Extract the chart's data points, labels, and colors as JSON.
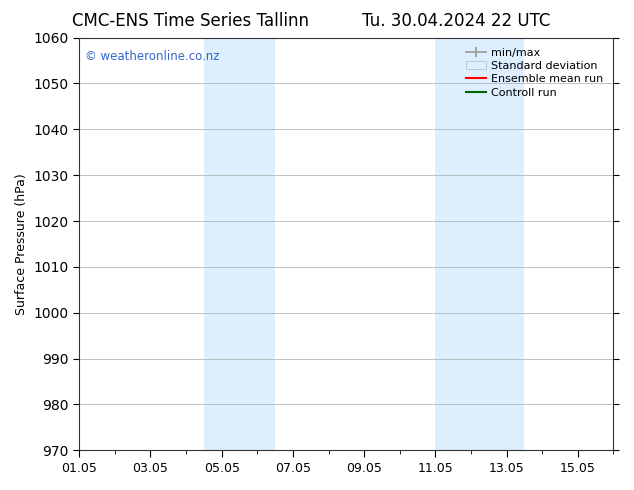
{
  "title_left": "CMC-ENS Time Series Tallinn",
  "title_right": "Tu. 30.04.2024 22 UTC",
  "ylabel": "Surface Pressure (hPa)",
  "ylim": [
    970,
    1060
  ],
  "yticks": [
    970,
    980,
    990,
    1000,
    1010,
    1020,
    1030,
    1040,
    1050,
    1060
  ],
  "xlim": [
    0,
    15
  ],
  "xtick_labels": [
    "01.05",
    "03.05",
    "05.05",
    "07.05",
    "09.05",
    "11.05",
    "13.05",
    "15.05"
  ],
  "xtick_positions": [
    0,
    2,
    4,
    6,
    8,
    10,
    12,
    14
  ],
  "xtick_minor_positions": [
    0,
    1,
    2,
    3,
    4,
    5,
    6,
    7,
    8,
    9,
    10,
    11,
    12,
    13,
    14,
    15
  ],
  "shade_bands": [
    {
      "x_start": 3.5,
      "x_end": 4.5
    },
    {
      "x_start": 4.5,
      "x_end": 5.5
    },
    {
      "x_start": 10.0,
      "x_end": 11.0
    },
    {
      "x_start": 11.0,
      "x_end": 12.5
    }
  ],
  "shade_color": "#ddeeff",
  "watermark": "© weatheronline.co.nz",
  "watermark_color": "#3366cc",
  "bg_color": "#ffffff",
  "grid_color": "#aaaaaa",
  "spine_color": "#333333",
  "title_fontsize": 12,
  "axis_fontsize": 9,
  "legend_fontsize": 8
}
